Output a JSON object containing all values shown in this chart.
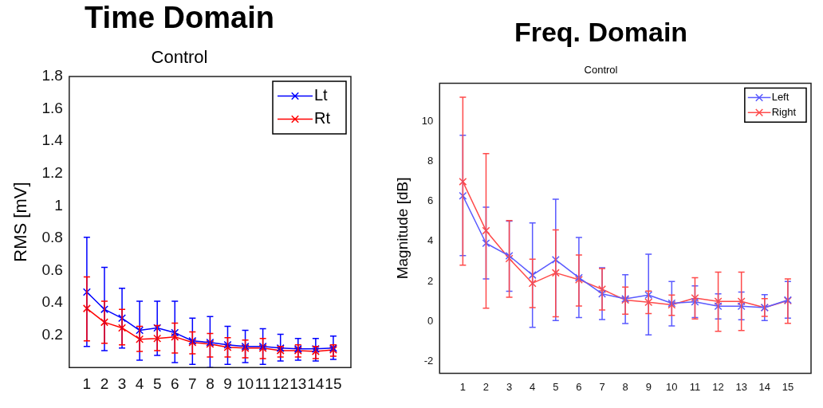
{
  "chart_data": [
    {
      "type": "line",
      "title": "Time Domain",
      "subtitle": "Control",
      "ylabel": "RMS [mV]",
      "x": [
        1,
        2,
        3,
        4,
        5,
        6,
        7,
        8,
        9,
        10,
        11,
        12,
        13,
        14,
        15
      ],
      "xlim": [
        0,
        16
      ],
      "xticks": [
        1,
        2,
        3,
        4,
        5,
        6,
        7,
        8,
        9,
        10,
        11,
        12,
        13,
        14,
        15
      ],
      "ylim": [
        0,
        1.8
      ],
      "yticks": [
        0.2,
        0.4,
        0.6,
        0.8,
        1,
        1.2,
        1.4,
        1.6,
        1.8
      ],
      "grid": false,
      "legend": "top right",
      "marker": "cross",
      "line_style": "solid",
      "series": [
        {
          "name": "Lt",
          "color": "#0000ff",
          "values": [
            0.467,
            0.36,
            0.305,
            0.23,
            0.245,
            0.215,
            0.165,
            0.155,
            0.14,
            0.13,
            0.13,
            0.12,
            0.115,
            0.115,
            0.12
          ],
          "errors": [
            [
              0.13,
              0.805
            ],
            [
              0.105,
              0.62
            ],
            [
              0.12,
              0.49
            ],
            [
              0.045,
              0.41
            ],
            [
              0.075,
              0.41
            ],
            [
              0.03,
              0.41
            ],
            [
              0.02,
              0.305
            ],
            [
              0.0,
              0.315
            ],
            [
              0.02,
              0.255
            ],
            [
              0.03,
              0.23
            ],
            [
              0.02,
              0.24
            ],
            [
              0.04,
              0.205
            ],
            [
              0.045,
              0.18
            ],
            [
              0.04,
              0.18
            ],
            [
              0.05,
              0.195
            ]
          ]
        },
        {
          "name": "Rt",
          "color": "#ff0000",
          "values": [
            0.365,
            0.28,
            0.245,
            0.175,
            0.18,
            0.19,
            0.155,
            0.145,
            0.125,
            0.12,
            0.12,
            0.105,
            0.105,
            0.1,
            0.11
          ],
          "errors": [
            [
              0.165,
              0.56
            ],
            [
              0.15,
              0.41
            ],
            [
              0.14,
              0.36
            ],
            [
              0.1,
              0.255
            ],
            [
              0.105,
              0.26
            ],
            [
              0.09,
              0.275
            ],
            [
              0.085,
              0.22
            ],
            [
              0.065,
              0.21
            ],
            [
              0.065,
              0.185
            ],
            [
              0.06,
              0.17
            ],
            [
              0.055,
              0.18
            ],
            [
              0.065,
              0.13
            ],
            [
              0.065,
              0.14
            ],
            [
              0.055,
              0.13
            ],
            [
              0.07,
              0.14
            ]
          ]
        }
      ]
    },
    {
      "type": "line",
      "title": "Freq. Domain",
      "subtitle": "Control",
      "ylabel": "Magnitude [dB]",
      "x": [
        1,
        2,
        3,
        4,
        5,
        6,
        7,
        8,
        9,
        10,
        11,
        12,
        13,
        14,
        15
      ],
      "xlim": [
        0,
        16
      ],
      "xticks": [
        1,
        2,
        3,
        4,
        5,
        6,
        7,
        8,
        9,
        10,
        11,
        12,
        13,
        14,
        15
      ],
      "ylim": [
        -2.6,
        11.9
      ],
      "yticks": [
        -2,
        0,
        2,
        4,
        6,
        8,
        10
      ],
      "grid": false,
      "legend": "top right",
      "marker": "cross",
      "line_style": "solid",
      "series": [
        {
          "name": "Left",
          "color": "#5a5aff",
          "values": [
            6.27,
            3.9,
            3.27,
            2.31,
            3.07,
            2.18,
            1.37,
            1.12,
            1.31,
            0.9,
            0.97,
            0.75,
            0.75,
            0.68,
            1.06
          ],
          "errors": [
            [
              3.28,
              9.3
            ],
            [
              2.12,
              5.7
            ],
            [
              1.5,
              5.0
            ],
            [
              -0.3,
              4.91
            ],
            [
              0.04,
              6.1
            ],
            [
              0.18,
              4.19
            ],
            [
              0.08,
              2.67
            ],
            [
              -0.11,
              2.33
            ],
            [
              -0.68,
              3.35
            ],
            [
              -0.23,
              1.99
            ],
            [
              0.18,
              1.77
            ],
            [
              0.11,
              1.37
            ],
            [
              0.07,
              1.46
            ],
            [
              0.04,
              1.33
            ],
            [
              0.15,
              1.99
            ]
          ]
        },
        {
          "name": "Right",
          "color": "#ff4a4a",
          "values": [
            6.98,
            4.53,
            3.13,
            1.9,
            2.42,
            2.08,
            1.6,
            1.06,
            0.95,
            0.82,
            1.16,
            0.99,
            0.99,
            0.68,
            1.03
          ],
          "errors": [
            [
              2.8,
              11.2
            ],
            [
              0.65,
              8.38
            ],
            [
              1.2,
              5.03
            ],
            [
              0.68,
              3.1
            ],
            [
              0.22,
              4.57
            ],
            [
              0.76,
              3.31
            ],
            [
              0.56,
              2.63
            ],
            [
              0.35,
              1.71
            ],
            [
              0.38,
              1.51
            ],
            [
              0.29,
              1.31
            ],
            [
              0.11,
              2.18
            ],
            [
              -0.5,
              2.46
            ],
            [
              -0.46,
              2.46
            ],
            [
              0.24,
              1.13
            ],
            [
              -0.1,
              2.12
            ]
          ]
        }
      ]
    }
  ]
}
